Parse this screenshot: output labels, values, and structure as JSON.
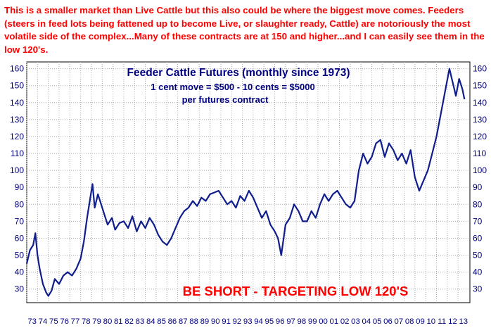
{
  "header": {
    "text": "This is a smaller market than Live Cattle but this also could be where the biggest move comes. Feeders (steers in feed lots being fattened up to become Live, or slaughter ready, Cattle) are notoriously the most volatile side of the complex...Many of these contracts are at 150 and higher...and I can easily see them in the low 120's."
  },
  "chart_data": {
    "type": "line",
    "title": "Feeder Cattle Futures (monthly since 1973)",
    "subtitle_lines": [
      "1 cent move = $500 - 10 cents = $5000",
      "per futures contract"
    ],
    "annotation": "BE SHORT - TARGETING LOW 120'S",
    "xlabel": "",
    "ylabel": "",
    "ylim": [
      22,
      164
    ],
    "y_ticks": [
      30,
      40,
      50,
      60,
      70,
      80,
      90,
      100,
      110,
      120,
      130,
      140,
      150,
      160
    ],
    "x_ticks": [
      "73",
      "74",
      "75",
      "76",
      "77",
      "78",
      "79",
      "80",
      "81",
      "82",
      "83",
      "84",
      "85",
      "86",
      "87",
      "88",
      "89",
      "90",
      "91",
      "92",
      "93",
      "94",
      "95",
      "96",
      "97",
      "98",
      "99",
      "00",
      "01",
      "02",
      "03",
      "04",
      "05",
      "06",
      "07",
      "08",
      "09",
      "10",
      "11",
      "12",
      "13"
    ],
    "x_tick_years": [
      1973,
      1974,
      1975,
      1976,
      1977,
      1978,
      1979,
      1980,
      1981,
      1982,
      1983,
      1984,
      1985,
      1986,
      1987,
      1988,
      1989,
      1990,
      1991,
      1992,
      1993,
      1994,
      1995,
      1996,
      1997,
      1998,
      1999,
      2000,
      2001,
      2002,
      2003,
      2004,
      2005,
      2006,
      2007,
      2008,
      2009,
      2010,
      2011,
      2012,
      2013
    ],
    "xlim": [
      1973,
      2014.1
    ],
    "grid": true,
    "line_color": "#0f1e8c",
    "grid_color": "#aaaaaa",
    "series": [
      {
        "x": [
          1973.0,
          1973.3,
          1973.6,
          1973.8,
          1974.0,
          1974.2,
          1974.5,
          1974.8,
          1975.0,
          1975.3,
          1975.6,
          1976.0,
          1976.4,
          1976.8,
          1977.2,
          1977.6,
          1978.0,
          1978.3,
          1978.6,
          1978.9,
          1979.1,
          1979.3,
          1979.6,
          1979.9,
          1980.2,
          1980.5,
          1980.9,
          1981.2,
          1981.6,
          1982.0,
          1982.4,
          1982.8,
          1983.2,
          1983.6,
          1984.0,
          1984.4,
          1984.8,
          1985.2,
          1985.6,
          1986.0,
          1986.4,
          1986.8,
          1987.2,
          1987.6,
          1988.0,
          1988.4,
          1988.8,
          1989.2,
          1989.6,
          1990.0,
          1990.4,
          1990.8,
          1991.2,
          1991.6,
          1992.0,
          1992.4,
          1992.8,
          1993.2,
          1993.6,
          1994.0,
          1994.4,
          1994.8,
          1995.2,
          1995.6,
          1996.0,
          1996.3,
          1996.6,
          1997.0,
          1997.4,
          1997.8,
          1998.2,
          1998.6,
          1999.0,
          1999.4,
          1999.8,
          2000.2,
          2000.6,
          2001.0,
          2001.4,
          2001.8,
          2002.2,
          2002.6,
          2003.0,
          2003.4,
          2003.8,
          2004.2,
          2004.6,
          2005.0,
          2005.4,
          2005.8,
          2006.2,
          2006.6,
          2007.0,
          2007.4,
          2007.8,
          2008.2,
          2008.6,
          2009.0,
          2009.4,
          2009.8,
          2010.2,
          2010.6,
          2011.0,
          2011.3,
          2011.6,
          2011.9,
          2012.2,
          2012.5,
          2012.8,
          2013.1,
          2013.4,
          2013.6
        ],
        "y": [
          45,
          53,
          56,
          63,
          50,
          42,
          33,
          28,
          26,
          29,
          36,
          33,
          38,
          40,
          38,
          42,
          48,
          58,
          72,
          84,
          92,
          78,
          86,
          80,
          74,
          68,
          72,
          65,
          69,
          70,
          66,
          73,
          64,
          70,
          66,
          72,
          68,
          62,
          58,
          56,
          60,
          66,
          72,
          76,
          78,
          82,
          79,
          84,
          82,
          86,
          87,
          88,
          84,
          80,
          82,
          78,
          85,
          82,
          88,
          84,
          78,
          72,
          76,
          68,
          64,
          60,
          50,
          68,
          72,
          80,
          76,
          70,
          70,
          76,
          72,
          80,
          86,
          82,
          86,
          88,
          84,
          80,
          78,
          82,
          100,
          110,
          104,
          108,
          116,
          118,
          108,
          116,
          112,
          106,
          110,
          104,
          112,
          96,
          88,
          94,
          100,
          110,
          120,
          130,
          140,
          150,
          160,
          152,
          144,
          154,
          148,
          142
        ]
      }
    ]
  }
}
